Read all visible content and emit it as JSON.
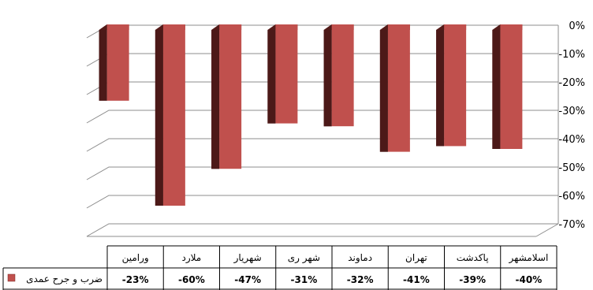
{
  "chart_data": {
    "type": "bar",
    "orientation": "vertical",
    "three_d": true,
    "categories": [
      "ورامین",
      "ملارد",
      "شهریار",
      "شهر ری",
      "دماوند",
      "تهران",
      "پاکدشت",
      "اسلامشهر"
    ],
    "series": [
      {
        "name": "ضرب و جرح عمدی",
        "values": [
          -23,
          -60,
          -47,
          -31,
          -32,
          -41,
          -39,
          -40
        ],
        "labels": [
          "-23%",
          "-60%",
          "-47%",
          "-31%",
          "-32%",
          "-41%",
          "-39%",
          "-40%"
        ],
        "color": "#c0504d"
      }
    ],
    "ylim": [
      -70,
      0
    ],
    "ytick_labels": [
      "0%",
      "-10%",
      "-20%",
      "-30%",
      "-40%",
      "-50%",
      "-60%",
      "-70%"
    ],
    "y_axis_position": "right",
    "grid": true,
    "data_table": true,
    "legend": "in-data-table-left"
  }
}
